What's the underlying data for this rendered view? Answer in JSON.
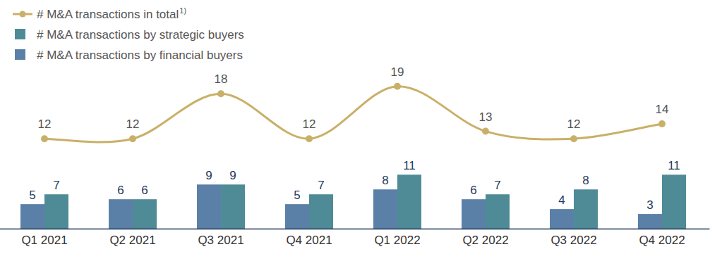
{
  "chart_data": {
    "type": "bar",
    "categories": [
      "Q1 2021",
      "Q2 2021",
      "Q3 2021",
      "Q4 2021",
      "Q1 2022",
      "Q2 2022",
      "Q3 2022",
      "Q4 2022"
    ],
    "series": [
      {
        "name": "# M&A transactions in total",
        "type": "line",
        "axis": "y2",
        "color": "#c9b068",
        "marker": "circle",
        "line_style": "solid",
        "values": [
          12,
          12,
          18,
          12,
          19,
          13,
          12,
          14
        ]
      },
      {
        "name": "# M&A transactions by strategic buyers",
        "type": "bar",
        "color": "#4f8b97",
        "values": [
          7,
          6,
          9,
          7,
          11,
          7,
          8,
          11
        ]
      },
      {
        "name": "# M&A transactions by financial buyers",
        "type": "bar",
        "color": "#5b80a8",
        "values": [
          5,
          6,
          9,
          5,
          8,
          6,
          4,
          3
        ]
      }
    ],
    "annotations": [
      "1)"
    ],
    "ylim": [
      0,
      33
    ],
    "y2lim": [
      0,
      21.6
    ],
    "grid": false,
    "legend": "top-left",
    "data_labels": true,
    "tick_labels": "x"
  }
}
